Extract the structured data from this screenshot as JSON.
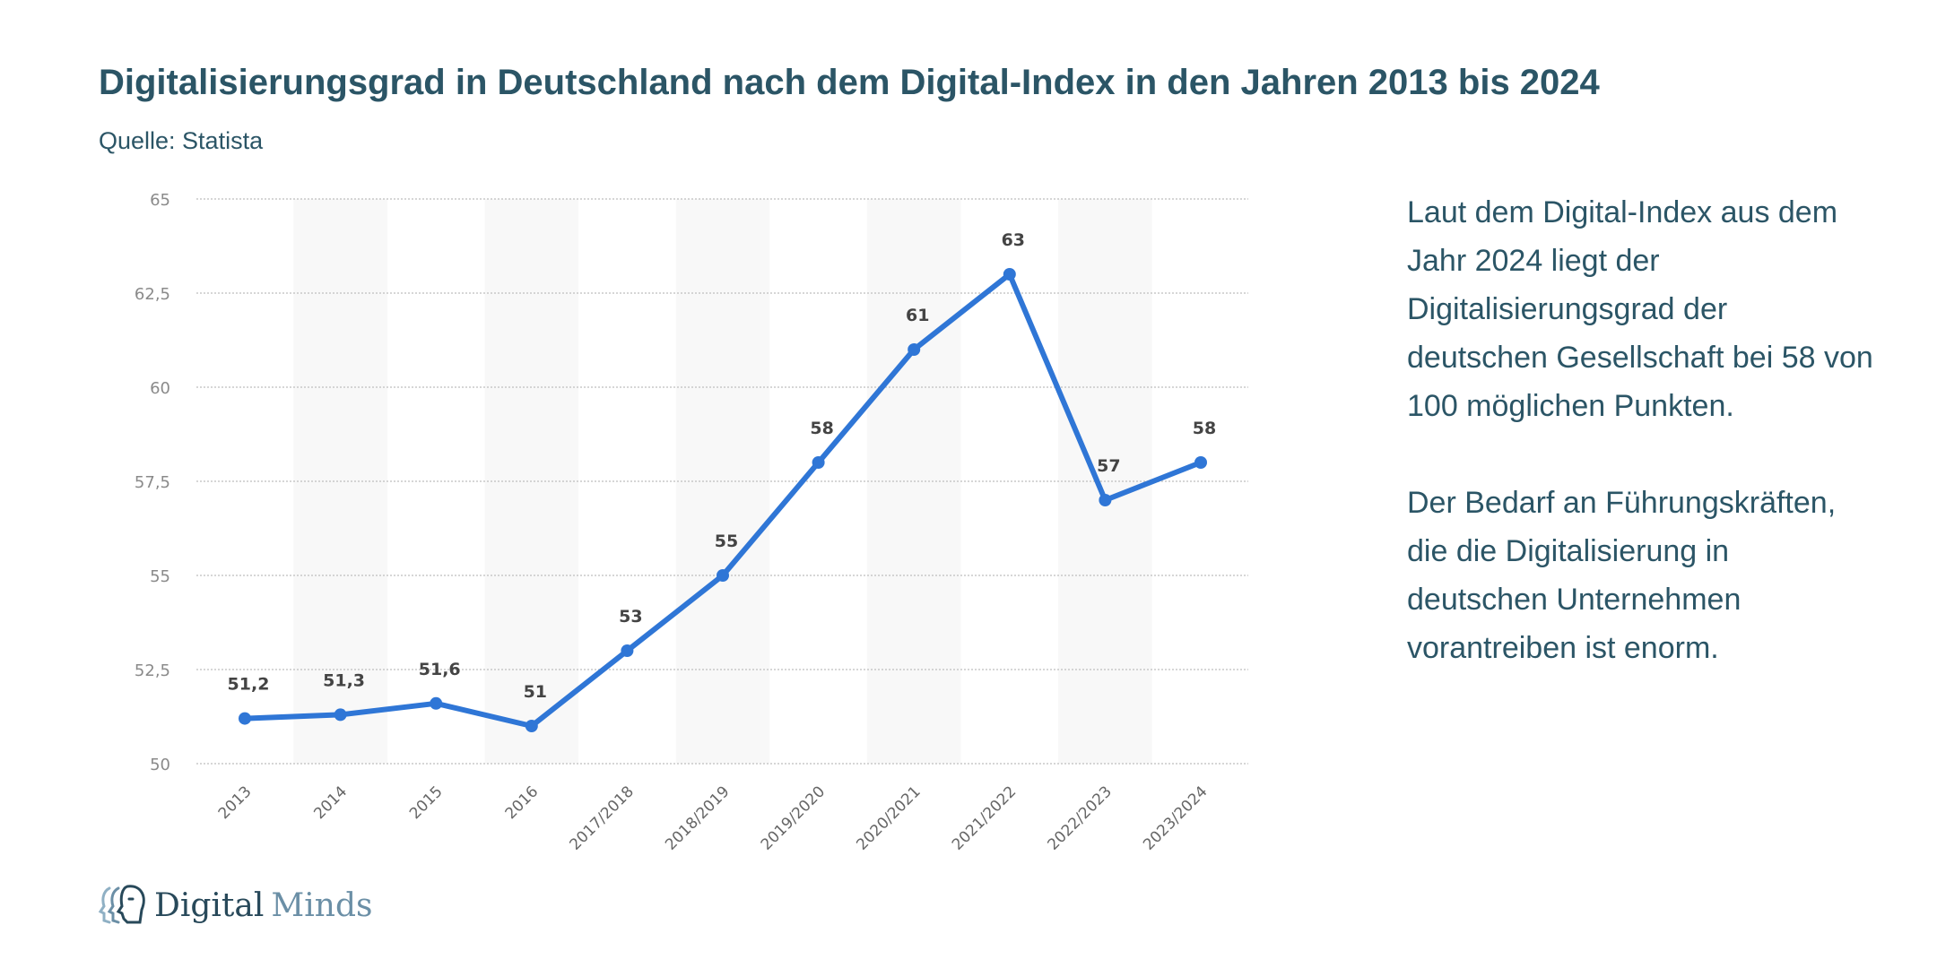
{
  "title": "Digitalisierungsgrad in Deutschland nach dem Digital-Index in den Jahren 2013 bis 2024",
  "subtitle": "Quelle: Statista",
  "side_text": [
    "Laut dem Digital-Index aus dem Jahr 2024 liegt der Digitalisierungsgrad der deutschen Gesellschaft bei 58 von 100 möglichen Punkten.",
    "Der Bedarf an Führungskräften, die die Digitalisierung in deutschen Unternehmen vorantreiben ist enorm."
  ],
  "logo": {
    "part1": "Digital",
    "part2": "Minds"
  },
  "chart_data": {
    "type": "line",
    "categories": [
      "2013",
      "2014",
      "2015",
      "2016",
      "2017/2018",
      "2018/2019",
      "2019/2020",
      "2020/2021",
      "2021/2022",
      "2022/2023",
      "2023/2024"
    ],
    "values": [
      51.2,
      51.3,
      51.6,
      51,
      53,
      55,
      58,
      61,
      63,
      57,
      58
    ],
    "data_labels": [
      "51,2",
      "51,3",
      "51,6",
      "51",
      "53",
      "55",
      "58",
      "61",
      "63",
      "57",
      "58"
    ],
    "yticks": [
      50,
      52.5,
      55,
      57.5,
      60,
      62.5,
      65
    ],
    "ytick_labels": [
      "50",
      "52,5",
      "55",
      "57,5",
      "60",
      "62,5",
      "65"
    ],
    "ylim": [
      50,
      65
    ],
    "grid": true,
    "line_color": "#2f76d6",
    "xlabel": "",
    "ylabel": ""
  }
}
